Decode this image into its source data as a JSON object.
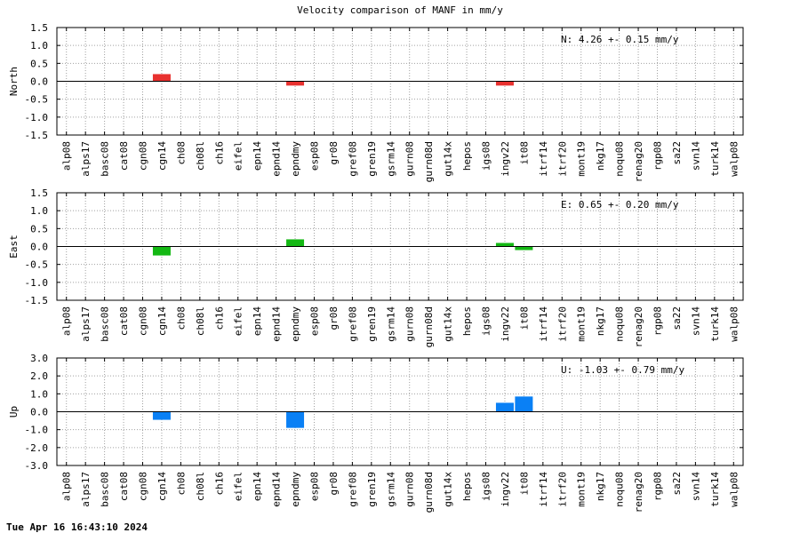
{
  "title": "Velocity comparison of MANF in mm/y",
  "timestamp": "Tue Apr 16 16:43:10 2024",
  "chart_data": [
    {
      "type": "bar",
      "ylabel": "North",
      "annotation": "N:   4.26 +-  0.15 mm/y",
      "ylim": [
        -1.5,
        1.5
      ],
      "yticks": [
        "-1.5",
        "-1.0",
        "-0.5",
        "0.0",
        "0.5",
        "1.0",
        "1.5"
      ],
      "ytick_values": [
        -1.5,
        -1.0,
        -0.5,
        0.0,
        0.5,
        1.0,
        1.5
      ],
      "color": "#e8312f",
      "grid": true,
      "categories": [
        "alp08",
        "alps17",
        "basc08",
        "cat08",
        "cgn08",
        "cgn14",
        "ch08",
        "ch08l",
        "ch16",
        "eifel",
        "epn14",
        "epnd14",
        "epndmy",
        "esp08",
        "gr08",
        "gref08",
        "gren19",
        "gsrm14",
        "gurn08",
        "gurn08d",
        "gut14x",
        "hepos",
        "igs08",
        "ingv22",
        "it08",
        "itrf14",
        "itrf20",
        "mont19",
        "nkg17",
        "noqu08",
        "renag20",
        "rgp08",
        "sa22",
        "svn14",
        "turk14",
        "walp08"
      ],
      "values": [
        null,
        null,
        null,
        null,
        null,
        0.2,
        null,
        null,
        null,
        null,
        null,
        null,
        -0.12,
        null,
        null,
        null,
        null,
        null,
        null,
        null,
        null,
        null,
        null,
        -0.12,
        null,
        null,
        null,
        null,
        null,
        null,
        null,
        null,
        null,
        null,
        null,
        null
      ]
    },
    {
      "type": "bar",
      "ylabel": "East",
      "annotation": "E:   0.65 +-  0.20 mm/y",
      "ylim": [
        -1.5,
        1.5
      ],
      "yticks": [
        "-1.5",
        "-1.0",
        "-0.5",
        "0.0",
        "0.5",
        "1.0",
        "1.5"
      ],
      "ytick_values": [
        -1.5,
        -1.0,
        -0.5,
        0.0,
        0.5,
        1.0,
        1.5
      ],
      "color": "#14b814",
      "grid": true,
      "categories": [
        "alp08",
        "alps17",
        "basc08",
        "cat08",
        "cgn08",
        "cgn14",
        "ch08",
        "ch08l",
        "ch16",
        "eifel",
        "epn14",
        "epnd14",
        "epndmy",
        "esp08",
        "gr08",
        "gref08",
        "gren19",
        "gsrm14",
        "gurn08",
        "gurn08d",
        "gut14x",
        "hepos",
        "igs08",
        "ingv22",
        "it08",
        "itrf14",
        "itrf20",
        "mont19",
        "nkg17",
        "noqu08",
        "renag20",
        "rgp08",
        "sa22",
        "svn14",
        "turk14",
        "walp08"
      ],
      "values": [
        null,
        null,
        null,
        null,
        null,
        -0.25,
        null,
        null,
        null,
        null,
        null,
        null,
        0.2,
        null,
        null,
        null,
        null,
        null,
        null,
        null,
        null,
        null,
        null,
        0.1,
        -0.1,
        null,
        null,
        null,
        null,
        null,
        null,
        null,
        null,
        null,
        null,
        null
      ]
    },
    {
      "type": "bar",
      "ylabel": "Up",
      "annotation": "U:  -1.03 +-  0.79 mm/y",
      "ylim": [
        -3.0,
        3.0
      ],
      "yticks": [
        "-3.0",
        "-2.0",
        "-1.0",
        "0.0",
        "1.0",
        "2.0",
        "3.0"
      ],
      "ytick_values": [
        -3.0,
        -2.0,
        -1.0,
        0.0,
        1.0,
        2.0,
        3.0
      ],
      "color": "#0a80f5",
      "grid": true,
      "categories": [
        "alp08",
        "alps17",
        "basc08",
        "cat08",
        "cgn08",
        "cgn14",
        "ch08",
        "ch08l",
        "ch16",
        "eifel",
        "epn14",
        "epnd14",
        "epndmy",
        "esp08",
        "gr08",
        "gref08",
        "gren19",
        "gsrm14",
        "gurn08",
        "gurn08d",
        "gut14x",
        "hepos",
        "igs08",
        "ingv22",
        "it08",
        "itrf14",
        "itrf20",
        "mont19",
        "nkg17",
        "noqu08",
        "renag20",
        "rgp08",
        "sa22",
        "svn14",
        "turk14",
        "walp08"
      ],
      "values": [
        null,
        null,
        null,
        null,
        null,
        -0.45,
        null,
        null,
        null,
        null,
        null,
        null,
        -0.9,
        null,
        null,
        null,
        null,
        null,
        null,
        null,
        null,
        null,
        null,
        0.5,
        0.85,
        null,
        null,
        null,
        null,
        null,
        null,
        null,
        null,
        null,
        null,
        null
      ]
    }
  ]
}
